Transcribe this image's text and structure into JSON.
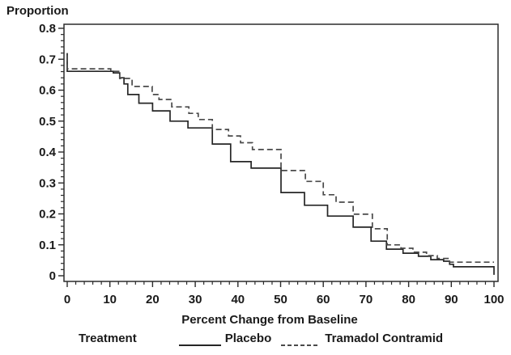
{
  "figure": {
    "background": "#ffffff",
    "text_color": "#1a1a1a",
    "frame_color": "#2b2b2b"
  },
  "chart_data": {
    "type": "line",
    "subtype": "step-survival",
    "title": "",
    "ylabel": "Proportion",
    "xlabel": "Percent Change from Baseline",
    "legend_title": "Treatment",
    "legend_position": "bottom",
    "grid": false,
    "xlim": [
      0,
      100
    ],
    "ylim": [
      0,
      0.8
    ],
    "x_tick_values": [
      0,
      10,
      20,
      30,
      40,
      50,
      60,
      70,
      80,
      90,
      100
    ],
    "x_tick_labels": [
      "0",
      "10",
      "20",
      "30",
      "40",
      "50",
      "60",
      "70",
      "80",
      "90",
      "100"
    ],
    "x_minor_step": 2,
    "y_tick_values": [
      0,
      0.1,
      0.2,
      0.3,
      0.4,
      0.5,
      0.6,
      0.7,
      0.8
    ],
    "y_tick_labels": [
      "0",
      "0.1",
      "0.2",
      "0.3",
      "0.4",
      "0.5",
      "0.6",
      "0.7",
      "0.8"
    ],
    "y_minor_step": 0.02,
    "series": [
      {
        "name": "Placebo",
        "style": "solid",
        "color": "#262626",
        "points": [
          [
            0,
            0.72
          ],
          [
            0,
            0.661
          ],
          [
            10.8,
            0.656
          ],
          [
            12.3,
            0.64
          ],
          [
            13.3,
            0.62
          ],
          [
            14.2,
            0.586
          ],
          [
            16.8,
            0.558
          ],
          [
            20.0,
            0.533
          ],
          [
            24.1,
            0.5
          ],
          [
            28.3,
            0.478
          ],
          [
            34.0,
            0.426
          ],
          [
            38.3,
            0.369
          ],
          [
            43.1,
            0.348
          ],
          [
            50.1,
            0.269
          ],
          [
            55.6,
            0.228
          ],
          [
            61.0,
            0.193
          ],
          [
            67.0,
            0.157
          ],
          [
            71.2,
            0.112
          ],
          [
            74.8,
            0.086
          ],
          [
            78.7,
            0.073
          ],
          [
            82.3,
            0.063
          ],
          [
            85.2,
            0.052
          ],
          [
            88.2,
            0.047
          ],
          [
            89.6,
            0.037
          ],
          [
            90.5,
            0.029
          ],
          [
            100,
            0.003
          ]
        ]
      },
      {
        "name": "Tramadol Contramid",
        "style": "dashed",
        "color": "#4a4a4a",
        "points": [
          [
            0,
            0.712
          ],
          [
            0,
            0.669
          ],
          [
            10.2,
            0.661
          ],
          [
            12.3,
            0.638
          ],
          [
            15.2,
            0.612
          ],
          [
            19.9,
            0.586
          ],
          [
            21.5,
            0.57
          ],
          [
            24.5,
            0.546
          ],
          [
            28.5,
            0.525
          ],
          [
            30.7,
            0.505
          ],
          [
            34.0,
            0.473
          ],
          [
            37.8,
            0.452
          ],
          [
            40.6,
            0.43
          ],
          [
            43.4,
            0.408
          ],
          [
            50.1,
            0.34
          ],
          [
            55.8,
            0.305
          ],
          [
            60.0,
            0.262
          ],
          [
            63.0,
            0.238
          ],
          [
            67.0,
            0.199
          ],
          [
            71.5,
            0.152
          ],
          [
            75.0,
            0.1
          ],
          [
            78.2,
            0.089
          ],
          [
            81.0,
            0.076
          ],
          [
            84.2,
            0.065
          ],
          [
            86.7,
            0.056
          ],
          [
            89.6,
            0.044
          ],
          [
            100,
            0.044
          ]
        ]
      }
    ]
  }
}
